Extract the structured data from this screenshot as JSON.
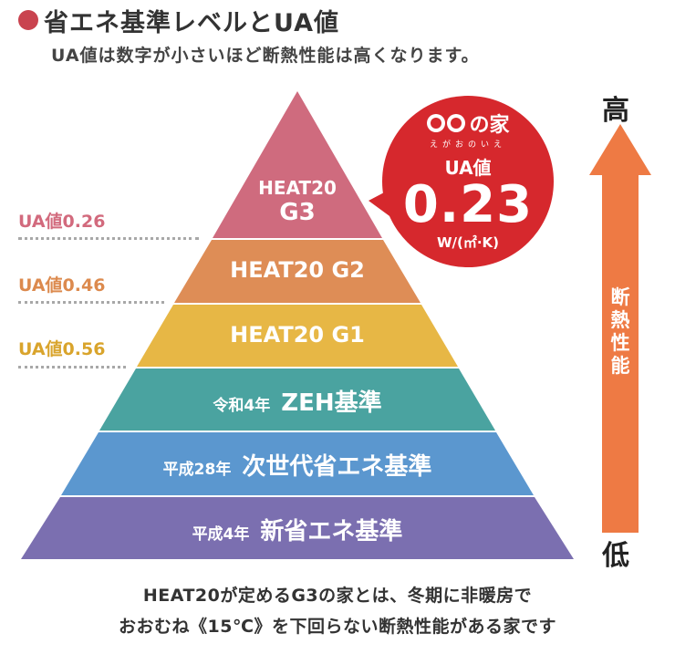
{
  "header": {
    "title": "省エネ基準レベルとUA値",
    "subtitle": "UA値は数字が小さいほど断熱性能は高くなります。"
  },
  "ua_labels": [
    {
      "text": "UA値0.26",
      "color": "#d26a7d"
    },
    {
      "text": "UA値0.46",
      "color": "#dc8a4e"
    },
    {
      "text": "UA値0.56",
      "color": "#d9a42c"
    }
  ],
  "pyramid": {
    "tiers": [
      {
        "pre": "",
        "main": "HEAT20 G3",
        "color": "#cf6b7e"
      },
      {
        "pre": "",
        "main": "HEAT20 G2",
        "color": "#de8d56"
      },
      {
        "pre": "",
        "main": "HEAT20 G1",
        "color": "#e7b745"
      },
      {
        "pre": "令和4年",
        "main": "ZEH基準",
        "color": "#4aa3a0"
      },
      {
        "pre": "平成28年",
        "main": "次世代省エネ基準",
        "color": "#5b97cf"
      },
      {
        "pre": "平成4年",
        "main": "新省エネ基準",
        "color": "#7b6fb0"
      }
    ],
    "g3_line1": "HEAT20",
    "g3_line2": "G3"
  },
  "bubble": {
    "logo_text": "の家",
    "logo_sub": "えがおのいえ",
    "label": "UA値",
    "value": "0.23",
    "unit": "W/(㎡·K)",
    "color": "#d6282d"
  },
  "scale": {
    "high": "高",
    "low": "低",
    "label": "断熱性能",
    "arrow_color": "#ee7a44"
  },
  "footer": {
    "line1": "HEAT20が定めるG3の家とは、冬期に非暖房で",
    "line2": "おおむね《15℃》を下回らない断熱性能がある家です"
  }
}
